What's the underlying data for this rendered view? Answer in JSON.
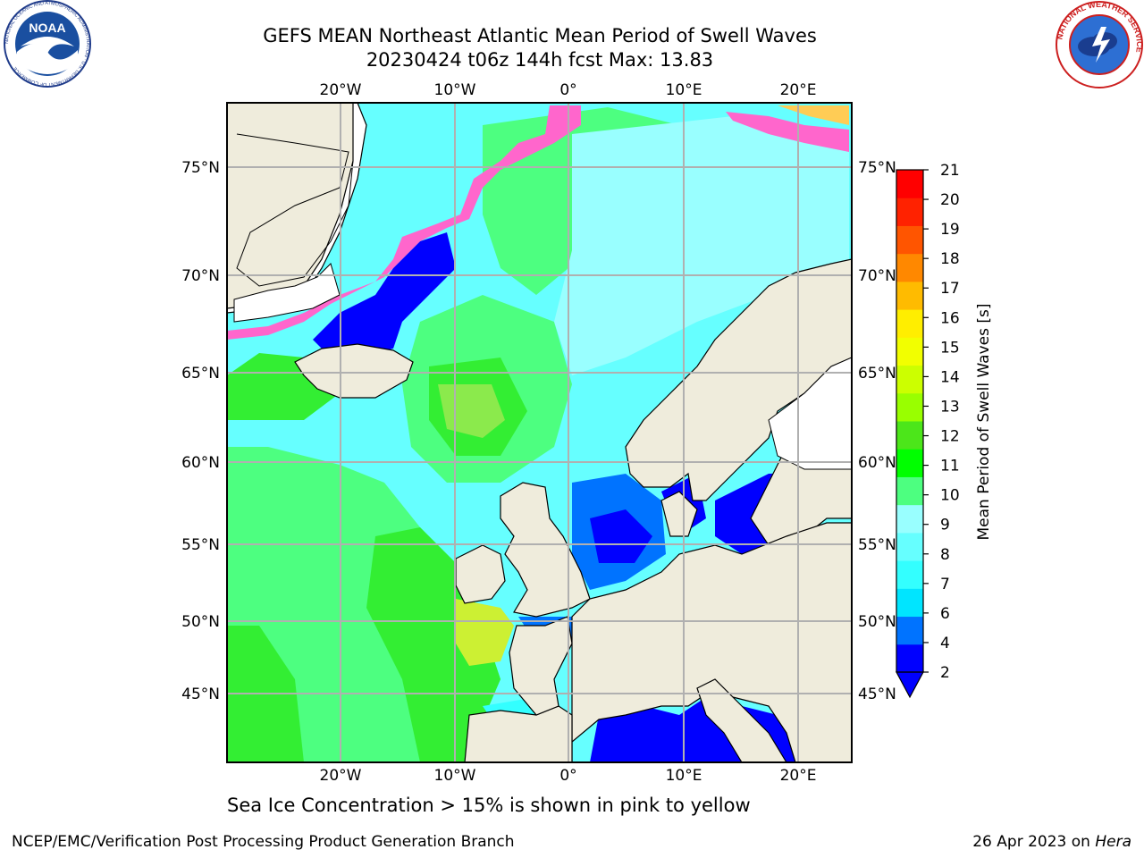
{
  "header": {
    "title_line1": "GEFS MEAN Northeast Atlantic Mean Period of Swell Waves",
    "title_line2": "20230424 t06z 144h fcst   Max: 13.83"
  },
  "logos": {
    "left": {
      "name": "NOAA",
      "ring_text": "NATIONAL OCEANIC AND ATMOSPHERIC ADMINISTRATION · U.S. DEPARTMENT OF COMMERCE"
    },
    "right": {
      "name": "NATIONAL WEATHER SERVICE"
    }
  },
  "map": {
    "top_lon_labels": [
      "20°W",
      "10°W",
      "0°",
      "10°E",
      "20°E"
    ],
    "bottom_lon_labels": [
      "20°W",
      "10°W",
      "0°",
      "10°E",
      "20°E"
    ],
    "left_lat_labels": [
      "75°N",
      "70°N",
      "65°N",
      "60°N",
      "55°N",
      "50°N",
      "45°N"
    ],
    "right_lat_labels": [
      "75°N",
      "70°N",
      "65°N",
      "60°N",
      "55°N",
      "50°N",
      "45°N"
    ],
    "land_color": "#efecdc",
    "grid_color": "#b0b0b0"
  },
  "colorbar": {
    "label": "Mean Period of Swell Waves [s]",
    "ticks": [
      "2",
      "4",
      "6",
      "7",
      "8",
      "9",
      "10",
      "11",
      "12",
      "13",
      "14",
      "15",
      "16",
      "17",
      "18",
      "19",
      "20",
      "21"
    ],
    "colors": [
      "#0000ff",
      "#0073ff",
      "#00e5ff",
      "#33ffff",
      "#66ffff",
      "#99ffff",
      "#4dff80",
      "#00ff00",
      "#4ce61a",
      "#99ff00",
      "#ccff00",
      "#f2ff00",
      "#ffee00",
      "#ffbb00",
      "#ff8800",
      "#ff5500",
      "#ff2200",
      "#ff0000"
    ],
    "under_color": "#0000ff"
  },
  "footer": {
    "ice_note": "Sea Ice Concentration > 15% is shown in pink to yellow",
    "credit": "NCEP/EMC/Verification Post Processing Product Generation Branch",
    "date": "26 Apr 2023 on",
    "host": "Hera"
  }
}
